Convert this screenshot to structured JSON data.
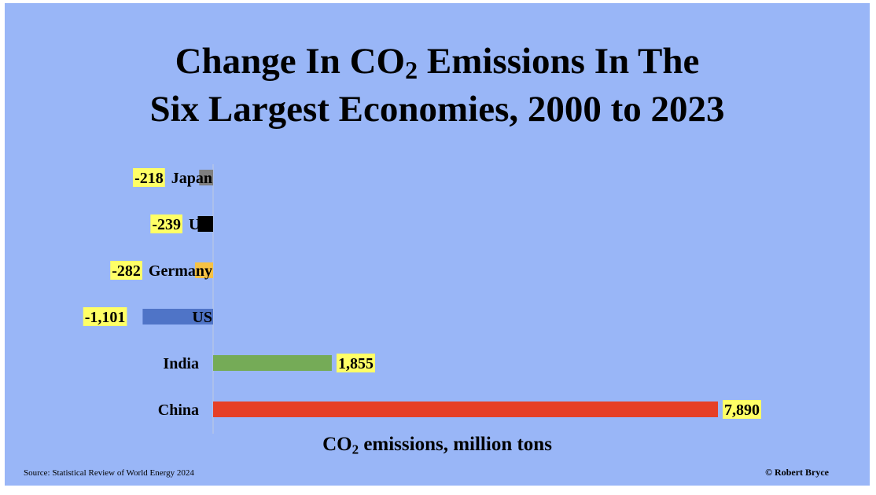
{
  "chart_data": {
    "type": "bar",
    "orientation": "horizontal",
    "title_parts": [
      "Change In CO",
      "2",
      " Emissions In The",
      "Six Largest Economies, 2000 to 2023"
    ],
    "xlabel_parts": [
      "CO",
      "2",
      " emissions, million tons"
    ],
    "xlim": [
      -1200,
      8000
    ],
    "categories": [
      "Japan",
      "UK",
      "Germany",
      "US",
      "India",
      "China"
    ],
    "values": [
      -218,
      -239,
      -282,
      -1101,
      1855,
      7890
    ],
    "value_labels": [
      "-218",
      "-239",
      "-282",
      "-1,101",
      "1,855",
      "7,890"
    ],
    "colors": [
      "#7f7f7f",
      "#000000",
      "#f6c244",
      "#4f74c7",
      "#75ab57",
      "#e63f26"
    ],
    "label_highlight": "#ffff66"
  },
  "source": "Source: Statistical Review of World Energy  2024",
  "credit": "© Robert Bryce",
  "colors": {
    "background": "#99b6f7",
    "axis": "#bfcbe0"
  }
}
